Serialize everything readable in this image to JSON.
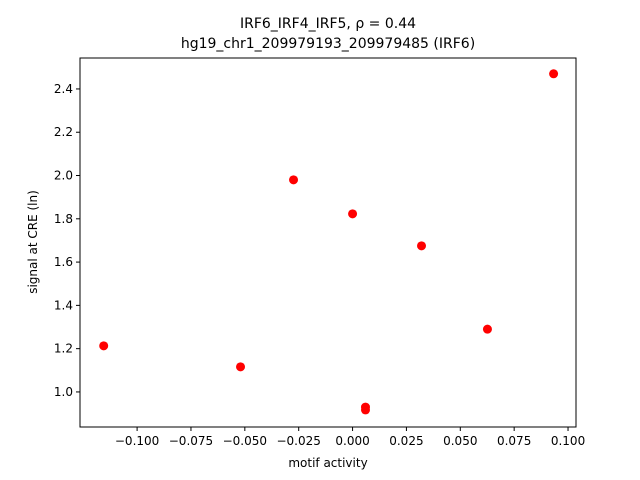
{
  "chart_data": {
    "type": "scatter",
    "title": "IRF6_IRF4_IRF5, ρ = 0.44",
    "subtitle": "hg19_chr1_209979193_209979485 (IRF6)",
    "x_label": "motif activity",
    "y_label": "signal at CRE (ln)",
    "color": "#ff0000",
    "x": [
      -0.1155,
      -0.052,
      -0.0274,
      0.0,
      0.006,
      0.006,
      0.032,
      0.0626,
      0.0933
    ],
    "values": [
      1.213,
      1.116,
      1.98,
      1.823,
      0.93,
      0.917,
      1.675,
      1.29,
      2.47
    ],
    "xlim": [
      -0.1265,
      0.1037
    ],
    "ylim": [
      0.838,
      2.543
    ],
    "xticks": [
      {
        "value": -0.1,
        "label": "−0.100"
      },
      {
        "value": -0.075,
        "label": "−0.075"
      },
      {
        "value": -0.05,
        "label": "−0.050"
      },
      {
        "value": -0.025,
        "label": "−0.025"
      },
      {
        "value": 0.0,
        "label": "0.000"
      },
      {
        "value": 0.025,
        "label": "0.025"
      },
      {
        "value": 0.05,
        "label": "0.050"
      },
      {
        "value": 0.075,
        "label": "0.075"
      },
      {
        "value": 0.1,
        "label": "0.100"
      }
    ],
    "yticks": [
      {
        "value": 1.0,
        "label": "1.0"
      },
      {
        "value": 1.2,
        "label": "1.2"
      },
      {
        "value": 1.4,
        "label": "1.4"
      },
      {
        "value": 1.6,
        "label": "1.6"
      },
      {
        "value": 1.8,
        "label": "1.8"
      },
      {
        "value": 2.0,
        "label": "2.0"
      },
      {
        "value": 2.2,
        "label": "2.2"
      },
      {
        "value": 2.4,
        "label": "2.4"
      }
    ]
  }
}
